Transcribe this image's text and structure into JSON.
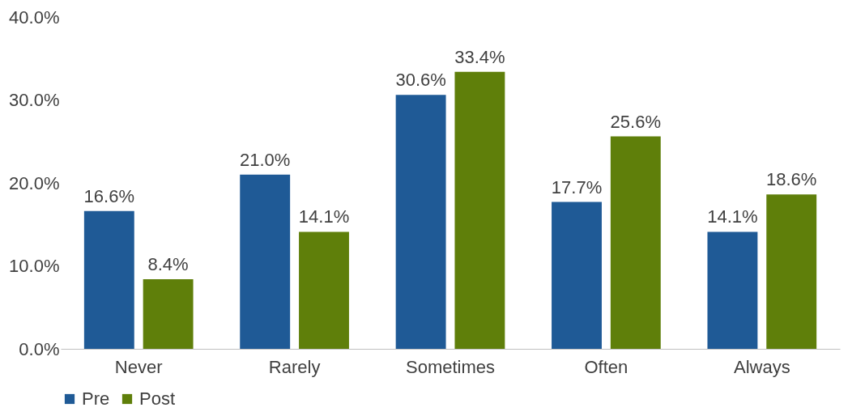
{
  "chart_data": {
    "type": "bar",
    "categories": [
      "Never",
      "Rarely",
      "Sometimes",
      "Often",
      "Always"
    ],
    "series": [
      {
        "name": "Pre",
        "color": "#1f5a96",
        "values": [
          16.6,
          21.0,
          30.6,
          17.7,
          14.1
        ],
        "value_labels": [
          "16.6%",
          "21.0%",
          "30.6%",
          "17.7%",
          "14.1%"
        ]
      },
      {
        "name": "Post",
        "color": "#5f7f0a",
        "values": [
          8.4,
          14.1,
          33.4,
          25.6,
          18.6
        ],
        "value_labels": [
          "8.4%",
          "14.1%",
          "33.4%",
          "25.6%",
          "18.6%"
        ]
      }
    ],
    "ylim": [
      0,
      40
    ],
    "yticks": [
      {
        "value": 0,
        "label": "0.0%"
      },
      {
        "value": 10,
        "label": "10.0%"
      },
      {
        "value": 20,
        "label": "20.0%"
      },
      {
        "value": 30,
        "label": "30.0%"
      },
      {
        "value": 40,
        "label": "40.0%"
      }
    ],
    "grid": false,
    "legend": "bottom"
  }
}
